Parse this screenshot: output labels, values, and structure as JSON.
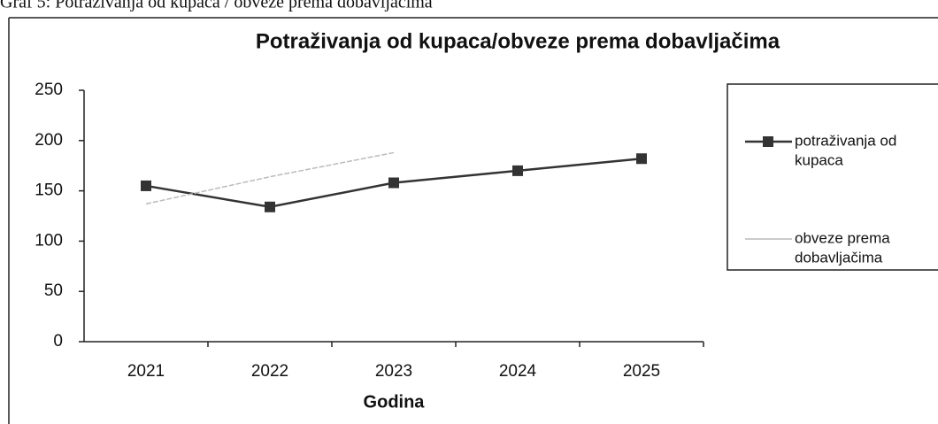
{
  "caption": "Graf 5: Potraživanja od kupaca / obveze prema dobavljačima",
  "chart_data": {
    "type": "line",
    "title": "Potraživanja od kupaca/obveze prema dobavljačima",
    "x_label": "Godina",
    "categories": [
      "2021",
      "2022",
      "2023",
      "2024",
      "2025"
    ],
    "series": [
      {
        "name": [
          "potraživanja od",
          "kupaca"
        ],
        "color": "#333333",
        "values": [
          155,
          134,
          158,
          170,
          182
        ]
      },
      {
        "name": [
          "obveze prema",
          "dobavljačima"
        ],
        "color": "#bbbbbb",
        "values": [
          137,
          164,
          188,
          null,
          null
        ]
      }
    ],
    "ylim": [
      0,
      250
    ],
    "yticks": [
      0,
      50,
      100,
      150,
      200,
      250
    ],
    "grid": false,
    "legend": "right"
  }
}
